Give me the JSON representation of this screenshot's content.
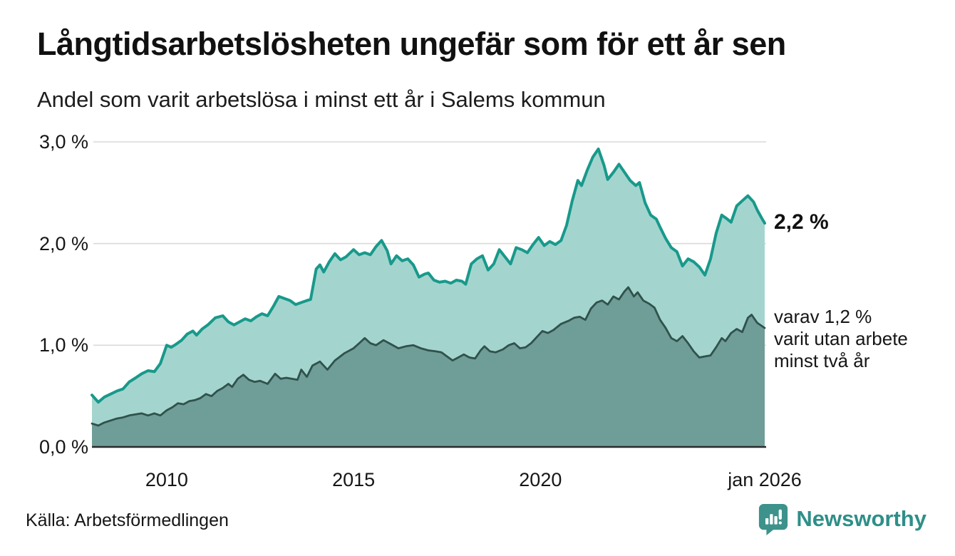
{
  "header": {
    "title": "Långtidsarbetslösheten ungefär som för ett år sen",
    "subtitle": "Andel som varit arbetslösa i minst ett år i Salems kommun"
  },
  "annotations": {
    "series1_end_value": "2,2 %",
    "series2_note_lines": [
      "varav 1,2 %",
      "varit utan arbete",
      "minst två år"
    ]
  },
  "footer": {
    "source": "Källa: Arbetsförmedlingen",
    "brand": "Newsworthy"
  },
  "colors": {
    "series1_line": "#18998b",
    "series1_fill": "#a3d5ce",
    "series2_line": "#30514c",
    "series2_fill": "#6f9d97",
    "gridline": "#d9d9d9",
    "baseline": "#2b2b2b",
    "brand_teal": "#2e8f88",
    "text": "#161616"
  },
  "chart_data": {
    "type": "area",
    "title": "Långtidsarbetslösheten ungefär som för ett år sen",
    "subtitle": "Andel som varit arbetslösa i minst ett år i Salems kommun",
    "xlabel": "",
    "ylabel": "",
    "grid": "horizontal",
    "legend_position": "end-of-line-labels",
    "x_range": [
      2008.0,
      2026.0
    ],
    "y_range": [
      0,
      3.0
    ],
    "y_ticks": [
      {
        "v": 0.0,
        "label": "0,0 %"
      },
      {
        "v": 1.0,
        "label": "1,0 %"
      },
      {
        "v": 2.0,
        "label": "2,0 %"
      },
      {
        "v": 3.0,
        "label": "3,0 %"
      }
    ],
    "x_ticks": [
      {
        "v": 2010,
        "label": "2010"
      },
      {
        "v": 2015,
        "label": "2015"
      },
      {
        "v": 2020,
        "label": "2020"
      },
      {
        "v": 2026,
        "label": "jan 2026"
      }
    ],
    "series": [
      {
        "name": "Andel som varit arbetslösa i minst ett år",
        "end_label": "2,2 %",
        "line_color": "#18998b",
        "fill_color": "#a3d5ce",
        "line_width": 4,
        "points": [
          [
            2008.0,
            0.51
          ],
          [
            2008.17,
            0.44
          ],
          [
            2008.33,
            0.49
          ],
          [
            2008.5,
            0.52
          ],
          [
            2008.67,
            0.55
          ],
          [
            2008.83,
            0.57
          ],
          [
            2009.0,
            0.64
          ],
          [
            2009.17,
            0.68
          ],
          [
            2009.33,
            0.72
          ],
          [
            2009.5,
            0.75
          ],
          [
            2009.67,
            0.74
          ],
          [
            2009.83,
            0.82
          ],
          [
            2010.0,
            1.0
          ],
          [
            2010.12,
            0.98
          ],
          [
            2010.25,
            1.01
          ],
          [
            2010.4,
            1.05
          ],
          [
            2010.55,
            1.11
          ],
          [
            2010.7,
            1.14
          ],
          [
            2010.8,
            1.1
          ],
          [
            2010.95,
            1.16
          ],
          [
            2011.1,
            1.2
          ],
          [
            2011.3,
            1.27
          ],
          [
            2011.5,
            1.29
          ],
          [
            2011.65,
            1.23
          ],
          [
            2011.8,
            1.2
          ],
          [
            2011.95,
            1.23
          ],
          [
            2012.1,
            1.26
          ],
          [
            2012.25,
            1.24
          ],
          [
            2012.4,
            1.28
          ],
          [
            2012.55,
            1.31
          ],
          [
            2012.7,
            1.29
          ],
          [
            2012.85,
            1.38
          ],
          [
            2013.0,
            1.48
          ],
          [
            2013.15,
            1.46
          ],
          [
            2013.3,
            1.44
          ],
          [
            2013.45,
            1.4
          ],
          [
            2013.6,
            1.42
          ],
          [
            2013.75,
            1.44
          ],
          [
            2013.85,
            1.45
          ],
          [
            2014.0,
            1.75
          ],
          [
            2014.1,
            1.79
          ],
          [
            2014.2,
            1.72
          ],
          [
            2014.35,
            1.82
          ],
          [
            2014.5,
            1.9
          ],
          [
            2014.65,
            1.84
          ],
          [
            2014.8,
            1.87
          ],
          [
            2015.0,
            1.94
          ],
          [
            2015.15,
            1.89
          ],
          [
            2015.3,
            1.91
          ],
          [
            2015.45,
            1.89
          ],
          [
            2015.6,
            1.97
          ],
          [
            2015.75,
            2.03
          ],
          [
            2015.9,
            1.93
          ],
          [
            2016.0,
            1.8
          ],
          [
            2016.15,
            1.88
          ],
          [
            2016.3,
            1.83
          ],
          [
            2016.45,
            1.85
          ],
          [
            2016.6,
            1.79
          ],
          [
            2016.75,
            1.67
          ],
          [
            2016.9,
            1.7
          ],
          [
            2017.0,
            1.71
          ],
          [
            2017.15,
            1.64
          ],
          [
            2017.3,
            1.62
          ],
          [
            2017.45,
            1.63
          ],
          [
            2017.6,
            1.61
          ],
          [
            2017.75,
            1.64
          ],
          [
            2017.9,
            1.63
          ],
          [
            2018.0,
            1.6
          ],
          [
            2018.15,
            1.8
          ],
          [
            2018.3,
            1.85
          ],
          [
            2018.45,
            1.88
          ],
          [
            2018.6,
            1.74
          ],
          [
            2018.75,
            1.8
          ],
          [
            2018.9,
            1.94
          ],
          [
            2019.05,
            1.87
          ],
          [
            2019.2,
            1.8
          ],
          [
            2019.35,
            1.96
          ],
          [
            2019.5,
            1.94
          ],
          [
            2019.65,
            1.91
          ],
          [
            2019.8,
            1.99
          ],
          [
            2019.95,
            2.06
          ],
          [
            2020.1,
            1.98
          ],
          [
            2020.25,
            2.02
          ],
          [
            2020.4,
            1.99
          ],
          [
            2020.55,
            2.03
          ],
          [
            2020.7,
            2.18
          ],
          [
            2020.85,
            2.42
          ],
          [
            2021.0,
            2.62
          ],
          [
            2021.1,
            2.57
          ],
          [
            2021.25,
            2.72
          ],
          [
            2021.4,
            2.85
          ],
          [
            2021.55,
            2.93
          ],
          [
            2021.7,
            2.77
          ],
          [
            2021.8,
            2.63
          ],
          [
            2021.95,
            2.7
          ],
          [
            2022.1,
            2.78
          ],
          [
            2022.25,
            2.7
          ],
          [
            2022.4,
            2.62
          ],
          [
            2022.55,
            2.57
          ],
          [
            2022.65,
            2.6
          ],
          [
            2022.8,
            2.4
          ],
          [
            2022.95,
            2.28
          ],
          [
            2023.1,
            2.24
          ],
          [
            2023.2,
            2.16
          ],
          [
            2023.35,
            2.05
          ],
          [
            2023.5,
            1.96
          ],
          [
            2023.65,
            1.92
          ],
          [
            2023.8,
            1.78
          ],
          [
            2023.95,
            1.85
          ],
          [
            2024.1,
            1.82
          ],
          [
            2024.25,
            1.77
          ],
          [
            2024.4,
            1.69
          ],
          [
            2024.55,
            1.85
          ],
          [
            2024.7,
            2.1
          ],
          [
            2024.85,
            2.28
          ],
          [
            2025.0,
            2.24
          ],
          [
            2025.1,
            2.21
          ],
          [
            2025.25,
            2.37
          ],
          [
            2025.4,
            2.42
          ],
          [
            2025.55,
            2.47
          ],
          [
            2025.7,
            2.41
          ],
          [
            2025.8,
            2.33
          ],
          [
            2025.92,
            2.25
          ],
          [
            2026.0,
            2.2
          ]
        ]
      },
      {
        "name": "varav utan arbete minst två år",
        "end_label": "varav 1,2 % varit utan arbete minst två år",
        "line_color": "#30514c",
        "fill_color": "#6f9d97",
        "line_width": 2.8,
        "points": [
          [
            2008.0,
            0.23
          ],
          [
            2008.17,
            0.21
          ],
          [
            2008.33,
            0.24
          ],
          [
            2008.5,
            0.26
          ],
          [
            2008.67,
            0.28
          ],
          [
            2008.83,
            0.29
          ],
          [
            2009.0,
            0.31
          ],
          [
            2009.17,
            0.32
          ],
          [
            2009.33,
            0.33
          ],
          [
            2009.5,
            0.31
          ],
          [
            2009.67,
            0.33
          ],
          [
            2009.83,
            0.31
          ],
          [
            2010.0,
            0.36
          ],
          [
            2010.15,
            0.39
          ],
          [
            2010.3,
            0.43
          ],
          [
            2010.45,
            0.42
          ],
          [
            2010.6,
            0.45
          ],
          [
            2010.75,
            0.46
          ],
          [
            2010.9,
            0.48
          ],
          [
            2011.05,
            0.52
          ],
          [
            2011.2,
            0.5
          ],
          [
            2011.35,
            0.55
          ],
          [
            2011.5,
            0.58
          ],
          [
            2011.65,
            0.62
          ],
          [
            2011.75,
            0.59
          ],
          [
            2011.9,
            0.67
          ],
          [
            2012.05,
            0.71
          ],
          [
            2012.2,
            0.66
          ],
          [
            2012.35,
            0.64
          ],
          [
            2012.5,
            0.65
          ],
          [
            2012.7,
            0.62
          ],
          [
            2012.9,
            0.72
          ],
          [
            2013.05,
            0.67
          ],
          [
            2013.2,
            0.68
          ],
          [
            2013.35,
            0.67
          ],
          [
            2013.5,
            0.66
          ],
          [
            2013.6,
            0.76
          ],
          [
            2013.75,
            0.69
          ],
          [
            2013.9,
            0.8
          ],
          [
            2014.1,
            0.84
          ],
          [
            2014.3,
            0.76
          ],
          [
            2014.5,
            0.85
          ],
          [
            2014.75,
            0.92
          ],
          [
            2015.0,
            0.97
          ],
          [
            2015.15,
            1.02
          ],
          [
            2015.3,
            1.07
          ],
          [
            2015.45,
            1.02
          ],
          [
            2015.6,
            1.0
          ],
          [
            2015.8,
            1.05
          ],
          [
            2016.0,
            1.01
          ],
          [
            2016.2,
            0.97
          ],
          [
            2016.4,
            0.99
          ],
          [
            2016.6,
            1.0
          ],
          [
            2016.8,
            0.97
          ],
          [
            2017.0,
            0.95
          ],
          [
            2017.2,
            0.94
          ],
          [
            2017.35,
            0.93
          ],
          [
            2017.5,
            0.89
          ],
          [
            2017.65,
            0.85
          ],
          [
            2017.8,
            0.88
          ],
          [
            2017.95,
            0.91
          ],
          [
            2018.1,
            0.88
          ],
          [
            2018.25,
            0.87
          ],
          [
            2018.4,
            0.95
          ],
          [
            2018.5,
            0.99
          ],
          [
            2018.65,
            0.94
          ],
          [
            2018.8,
            0.93
          ],
          [
            2019.0,
            0.96
          ],
          [
            2019.15,
            1.0
          ],
          [
            2019.3,
            1.02
          ],
          [
            2019.45,
            0.97
          ],
          [
            2019.6,
            0.98
          ],
          [
            2019.75,
            1.02
          ],
          [
            2019.9,
            1.08
          ],
          [
            2020.05,
            1.14
          ],
          [
            2020.2,
            1.12
          ],
          [
            2020.35,
            1.15
          ],
          [
            2020.55,
            1.21
          ],
          [
            2020.75,
            1.24
          ],
          [
            2020.9,
            1.27
          ],
          [
            2021.05,
            1.28
          ],
          [
            2021.2,
            1.25
          ],
          [
            2021.35,
            1.36
          ],
          [
            2021.5,
            1.42
          ],
          [
            2021.65,
            1.44
          ],
          [
            2021.8,
            1.4
          ],
          [
            2021.95,
            1.48
          ],
          [
            2022.1,
            1.45
          ],
          [
            2022.25,
            1.53
          ],
          [
            2022.35,
            1.57
          ],
          [
            2022.5,
            1.48
          ],
          [
            2022.6,
            1.52
          ],
          [
            2022.75,
            1.44
          ],
          [
            2022.9,
            1.41
          ],
          [
            2023.05,
            1.37
          ],
          [
            2023.2,
            1.25
          ],
          [
            2023.35,
            1.17
          ],
          [
            2023.5,
            1.07
          ],
          [
            2023.65,
            1.04
          ],
          [
            2023.8,
            1.09
          ],
          [
            2023.95,
            1.02
          ],
          [
            2024.1,
            0.94
          ],
          [
            2024.25,
            0.88
          ],
          [
            2024.4,
            0.89
          ],
          [
            2024.55,
            0.9
          ],
          [
            2024.7,
            0.98
          ],
          [
            2024.85,
            1.07
          ],
          [
            2024.95,
            1.04
          ],
          [
            2025.1,
            1.12
          ],
          [
            2025.25,
            1.16
          ],
          [
            2025.4,
            1.13
          ],
          [
            2025.55,
            1.27
          ],
          [
            2025.65,
            1.3
          ],
          [
            2025.8,
            1.22
          ],
          [
            2026.0,
            1.17
          ]
        ]
      }
    ]
  }
}
